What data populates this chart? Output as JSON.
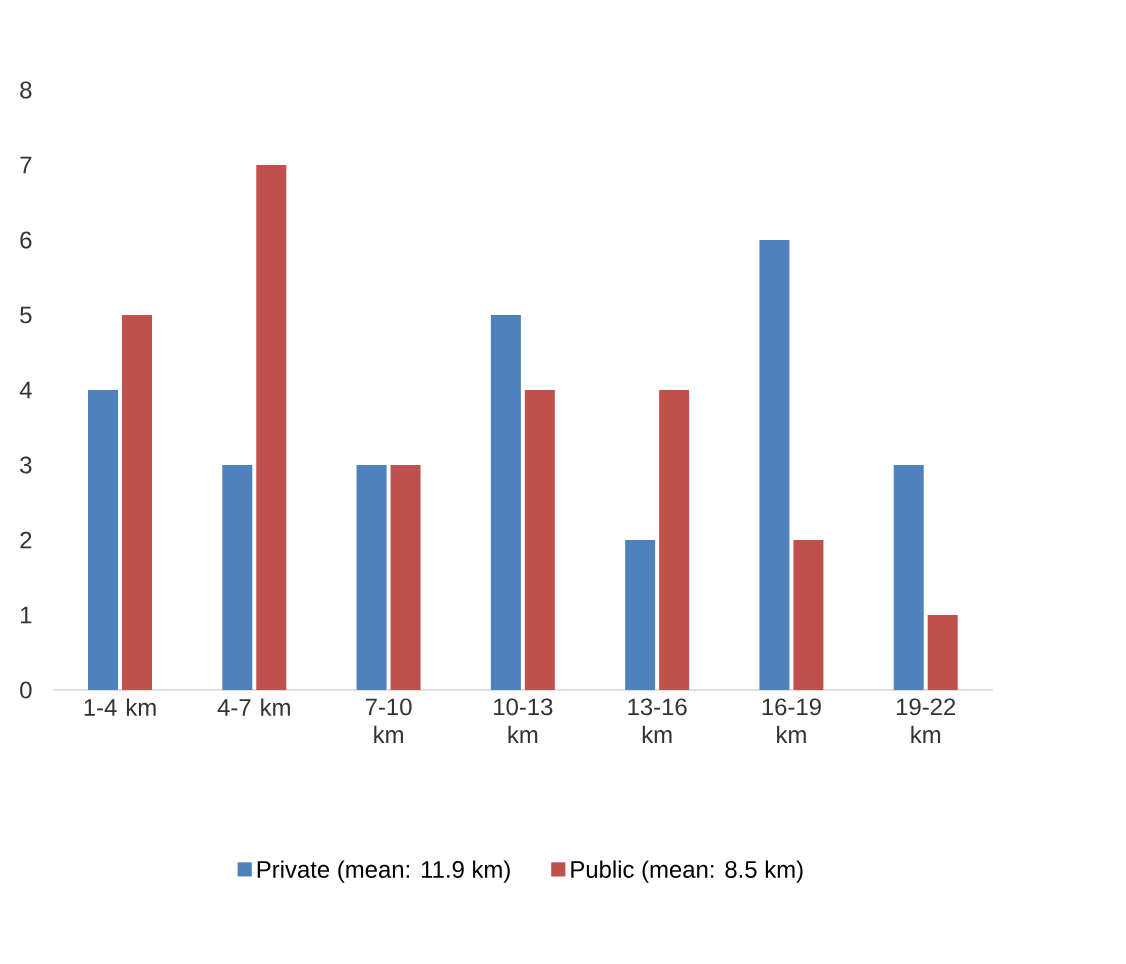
{
  "chart_data": {
    "type": "bar",
    "categories": [
      "1-4 km",
      "4-7 km",
      "7-10 km",
      "10-13 km",
      "13-16 km",
      "16-19 km",
      "19-22 km"
    ],
    "series": [
      {
        "name": "Private (mean: 11.9 km)",
        "color": "#4f81bd",
        "values": [
          4,
          3,
          3,
          5,
          2,
          6,
          3
        ]
      },
      {
        "name": "Public (mean: 8.5 km)",
        "color": "#c0504d",
        "values": [
          5,
          7,
          3,
          4,
          4,
          2,
          1
        ]
      }
    ],
    "ylim": [
      0,
      8
    ],
    "yticks": [
      0,
      1,
      2,
      3,
      4,
      5,
      6,
      7,
      8
    ],
    "legend": "bottom"
  }
}
